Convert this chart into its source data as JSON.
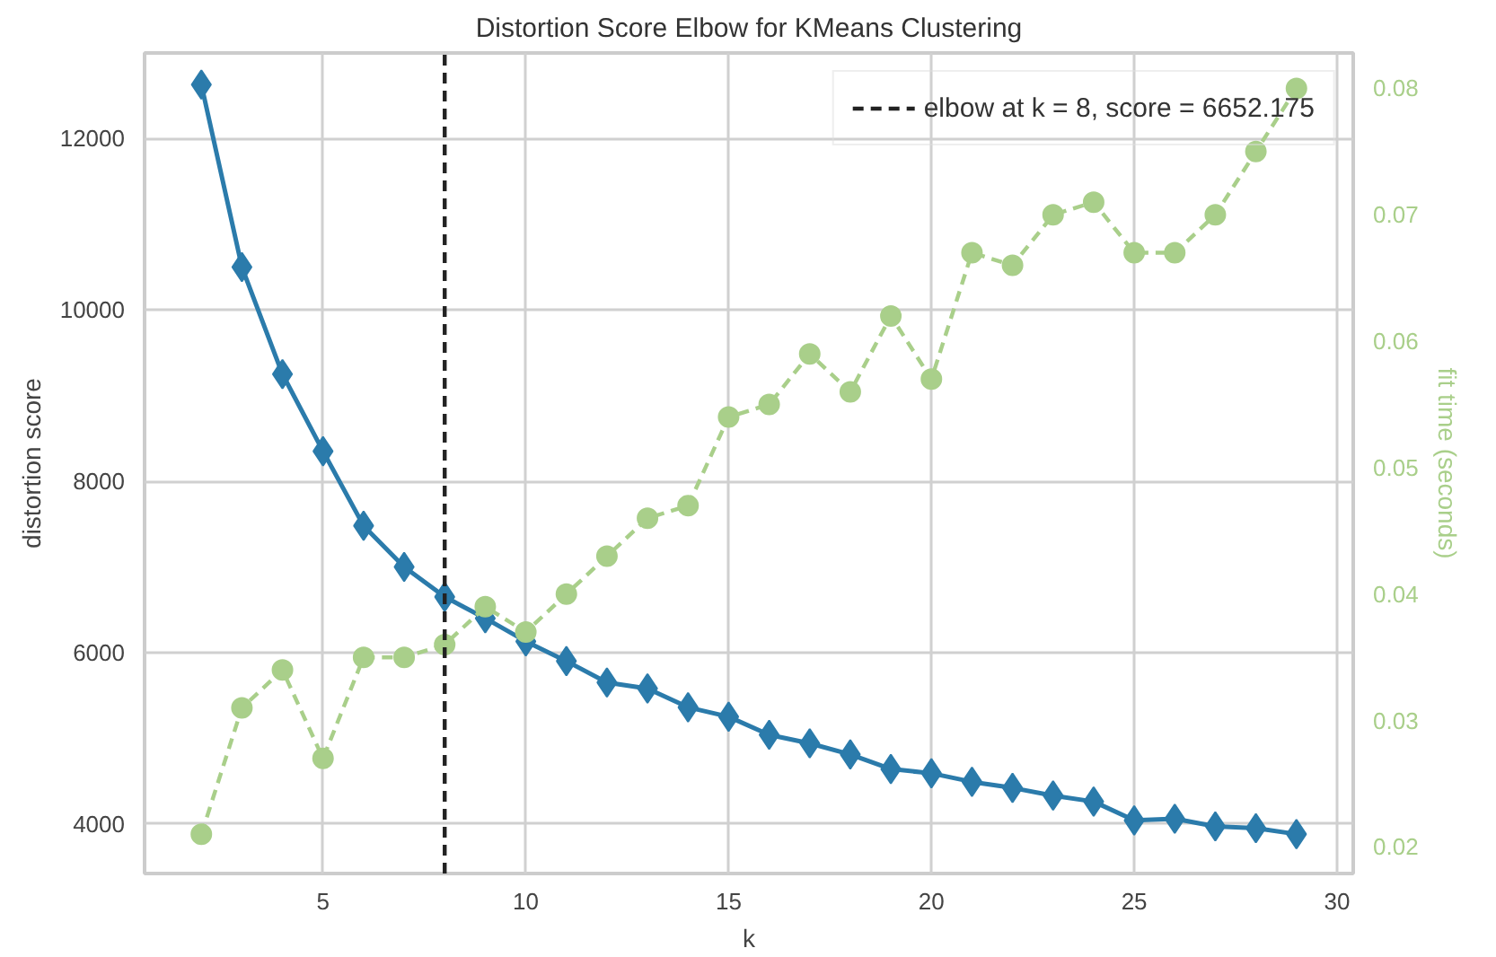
{
  "chart_data": {
    "type": "line",
    "title": "Distortion Score Elbow for KMeans Clustering",
    "xlabel": "k",
    "ylabel": "distortion score",
    "y2label": "fit time (seconds)",
    "x": [
      2,
      3,
      4,
      5,
      6,
      7,
      8,
      9,
      10,
      11,
      12,
      13,
      14,
      15,
      16,
      17,
      18,
      19,
      20,
      21,
      22,
      23,
      24,
      25,
      26,
      27,
      28,
      29
    ],
    "series": [
      {
        "color": "#2b7bab",
        "marker": "diamond",
        "line_style": "solid",
        "values": [
          12630,
          10500,
          9250,
          8350,
          7480,
          7000,
          6650,
          6400,
          6130,
          5900,
          5650,
          5580,
          5360,
          5250,
          5040,
          4940,
          4810,
          4640,
          4590,
          4490,
          4420,
          4330,
          4260,
          4040,
          4060,
          3970,
          3950,
          3880
        ]
      },
      {
        "color": "#a9cf8a",
        "marker": "circle",
        "line_style": "dashed",
        "axis": "y2",
        "values": [
          0.021,
          0.031,
          0.034,
          0.027,
          0.035,
          0.035,
          0.036,
          0.039,
          0.037,
          0.04,
          0.043,
          0.046,
          0.047,
          0.054,
          0.055,
          0.059,
          0.056,
          0.062,
          0.057,
          0.067,
          0.066,
          0.07,
          0.071,
          0.067,
          0.067,
          0.07,
          0.075,
          0.08
        ]
      }
    ],
    "xlim": [
      0.6,
      30.4
    ],
    "xticks": [
      5,
      10,
      15,
      20,
      25,
      30
    ],
    "ylim": [
      3420,
      13000
    ],
    "yticks": [
      4000,
      6000,
      8000,
      10000,
      12000
    ],
    "y2lim": [
      0.0179,
      0.0828
    ],
    "y2ticks": [
      0.02,
      0.03,
      0.04,
      0.05,
      0.06,
      0.07,
      0.08
    ],
    "ref_lines": [
      {
        "axis": "x",
        "value": 8,
        "label": "elbow at k = 8, score = 6652.175",
        "color": "#222222",
        "line_style": "dashed"
      }
    ],
    "grid": true,
    "legend": "top right"
  }
}
